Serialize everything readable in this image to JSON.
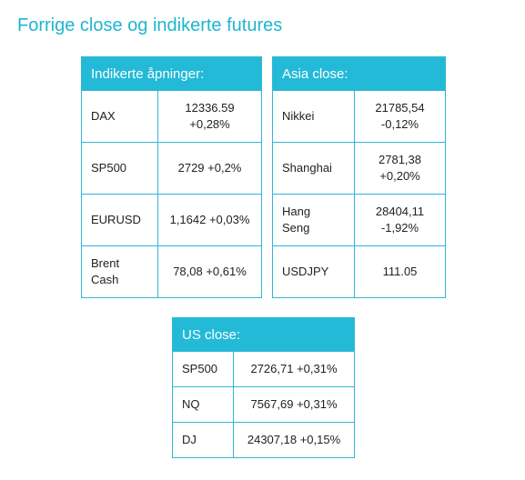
{
  "title": "Forrige close og indikerte futures",
  "indicated": {
    "header": "Indikerte åpninger:",
    "rows": [
      {
        "name": "DAX",
        "value_line1": "12336.59",
        "value_line2": "+0,28%"
      },
      {
        "name": "SP500",
        "value_line1": "2729 +0,2%",
        "value_line2": ""
      },
      {
        "name": "EURUSD",
        "value_line1": "1,1642 +0,03%",
        "value_line2": ""
      },
      {
        "name_line1": "Brent",
        "name_line2": "Cash",
        "value_line1": "78,08 +0,61%",
        "value_line2": ""
      }
    ]
  },
  "asia": {
    "header": "Asia close:",
    "rows": [
      {
        "name": "Nikkei",
        "value_line1": "21785,54",
        "value_line2": "-0,12%"
      },
      {
        "name": "Shanghai",
        "value_line1": "2781,38",
        "value_line2": "+0,20%"
      },
      {
        "name_line1": "Hang",
        "name_line2": "Seng",
        "value_line1": "28404,11",
        "value_line2": "-1,92%"
      },
      {
        "name": "USDJPY",
        "value_line1": "111.05",
        "value_line2": ""
      }
    ]
  },
  "us": {
    "header": "US close:",
    "rows": [
      {
        "name": "SP500",
        "value": "2726,71 +0,31%"
      },
      {
        "name": "NQ",
        "value": "7567,69 +0,31%"
      },
      {
        "name": "DJ",
        "value": "24307,18 +0,15%"
      }
    ]
  }
}
